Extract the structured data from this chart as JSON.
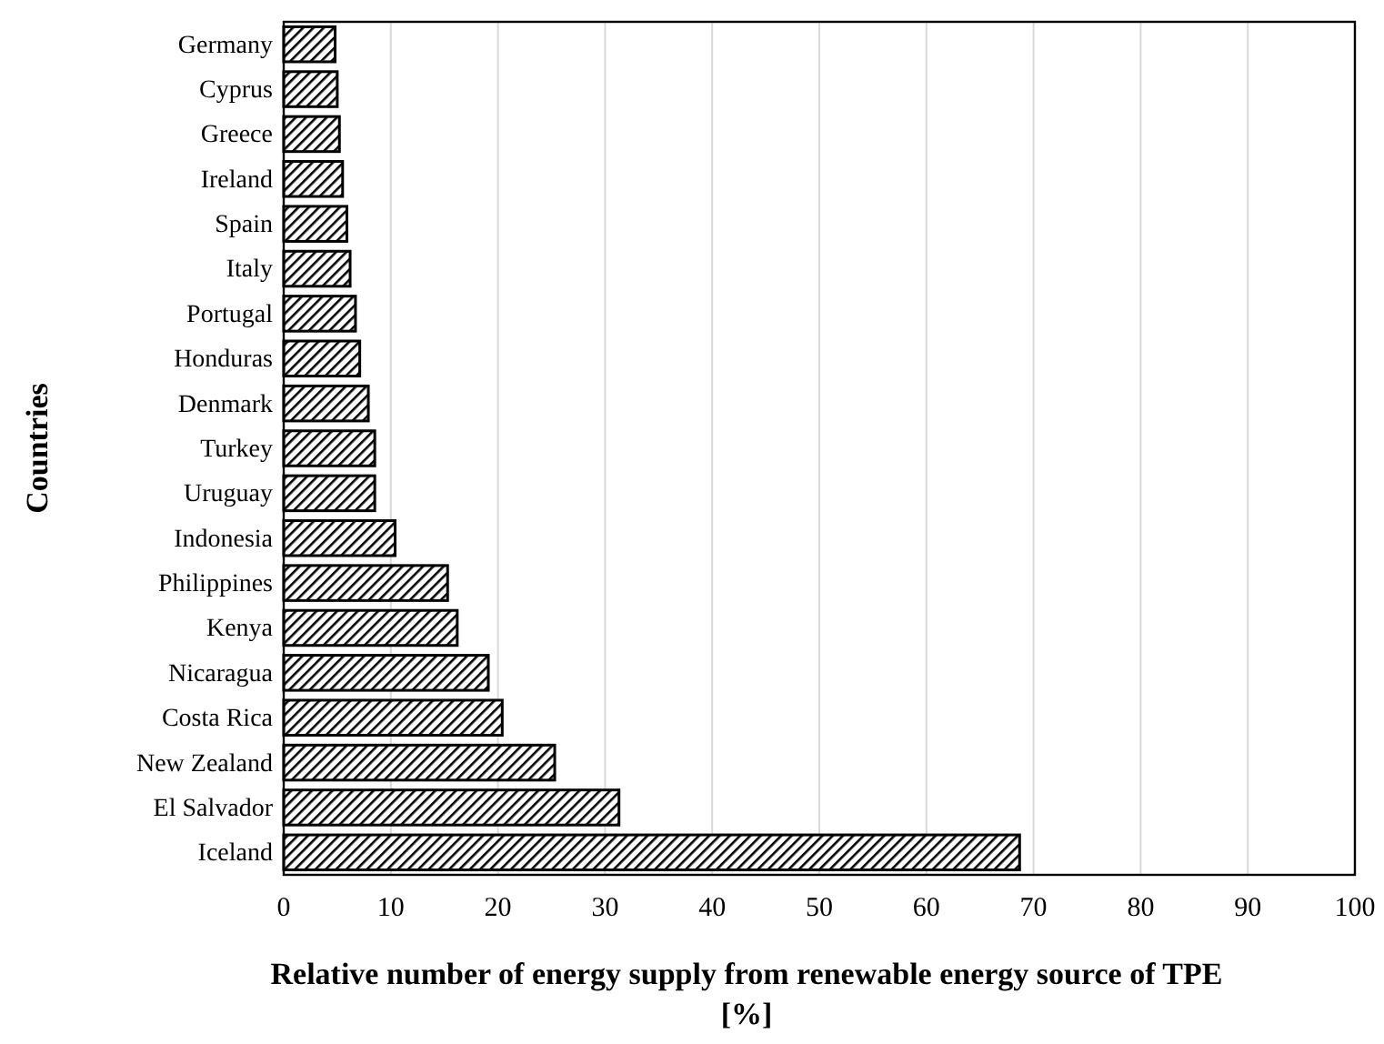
{
  "chart_data": {
    "type": "bar",
    "orientation": "horizontal",
    "categories": [
      "Germany",
      "Cyprus",
      "Greece",
      "Ireland",
      "Spain",
      "Italy",
      "Portugal",
      "Honduras",
      "Denmark",
      "Turkey",
      "Uruguay",
      "Indonesia",
      "Philippines",
      "Kenya",
      "Nicaragua",
      "Costa Rica",
      "New Zealand",
      "El Salvador",
      "Iceland"
    ],
    "values": [
      4.8,
      5.0,
      5.2,
      5.5,
      5.9,
      6.2,
      6.7,
      7.1,
      7.9,
      8.5,
      8.5,
      10.4,
      15.3,
      16.2,
      19.1,
      20.4,
      25.3,
      31.3,
      68.7
    ],
    "color": "#000000",
    "xlim": [
      0,
      100
    ],
    "xticks": [
      0,
      10,
      20,
      30,
      40,
      50,
      60,
      70,
      80,
      90,
      100
    ],
    "grid": "x",
    "xlabel": "Relative number of energy supply from renewable energy source of TPE [%]",
    "ylabel": "Countries"
  }
}
